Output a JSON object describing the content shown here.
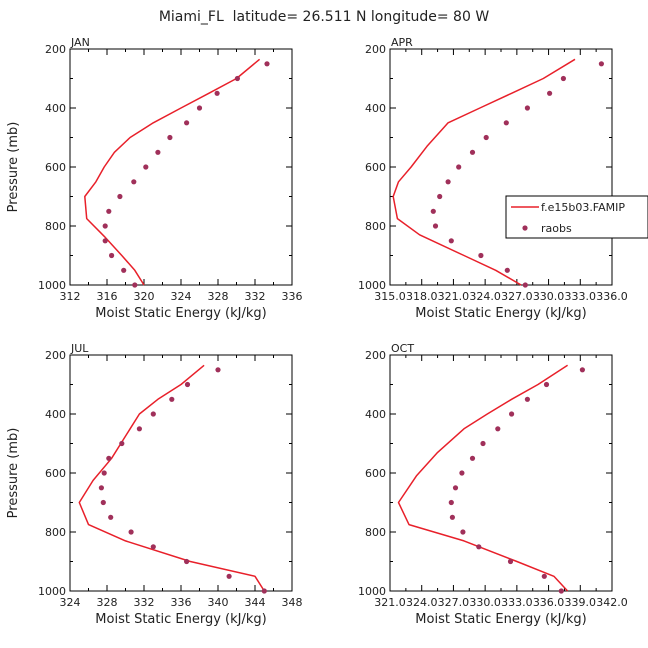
{
  "figure": {
    "title": "Miami_FL  latitude= 26.511 N longitude= 80 W",
    "colors": {
      "model": "#e8202a",
      "obs": "#a0305a"
    }
  },
  "chart_data": [
    {
      "type": "line",
      "panel": "JAN",
      "xlabel": "Moist Static Energy (kJ/kg)",
      "ylabel": "Pressure (mb)",
      "xlim": [
        312,
        336
      ],
      "ylim": [
        1000,
        200
      ],
      "x_ticks": [
        312,
        316,
        320,
        324,
        328,
        332,
        336
      ],
      "x_tick_labels": [
        "312",
        "316",
        "320",
        "324",
        "328",
        "332",
        "336"
      ],
      "y_ticks": [
        200,
        400,
        600,
        800,
        1000
      ],
      "y_tick_labels": [
        "200",
        "400",
        "600",
        "800",
        "1000"
      ],
      "series": [
        {
          "style": "line",
          "x": [
            332.5,
            330,
            327,
            324,
            321,
            318.5,
            316.8,
            315.7,
            314.8,
            313.6,
            313.8,
            315.7,
            317.6,
            319,
            320
          ],
          "y": [
            235,
            300,
            350,
            400,
            450,
            500,
            550,
            600,
            650,
            700,
            775,
            835,
            900,
            950,
            1000
          ]
        },
        {
          "style": "points",
          "x": [
            333.3,
            330.1,
            327.9,
            326,
            324.6,
            322.8,
            321.5,
            320.2,
            318.9,
            317.4,
            316.2,
            315.8,
            315.8,
            316.5,
            317.8,
            319
          ],
          "y": [
            250,
            300,
            350,
            400,
            450,
            500,
            550,
            600,
            650,
            700,
            750,
            800,
            850,
            900,
            950,
            1000
          ]
        }
      ]
    },
    {
      "type": "line",
      "panel": "APR",
      "xlabel": "Moist Static Energy (kJ/kg)",
      "ylabel": "",
      "xlim": [
        315.0,
        336.0
      ],
      "ylim": [
        1000,
        200
      ],
      "x_ticks": [
        315.0,
        318.0,
        321.0,
        324.0,
        327.0,
        330.0,
        333.0,
        336.0
      ],
      "x_tick_labels": [
        "315.0",
        "318.0",
        "321.0",
        "324.0",
        "327.0",
        "330.0",
        "333.0",
        "336.0"
      ],
      "y_ticks": [
        200,
        400,
        600,
        800,
        1000
      ],
      "y_tick_labels": [
        "200",
        "400",
        "600",
        "800",
        "1000"
      ],
      "series": [
        {
          "name": "f.e15b03.FAMIP",
          "style": "line",
          "x": [
            332.5,
            329.5,
            326.5,
            323.5,
            320.5,
            318.5,
            317,
            315.8,
            315.3,
            315.7,
            317.8,
            322,
            325,
            327.4
          ],
          "y": [
            235,
            300,
            350,
            400,
            450,
            530,
            600,
            650,
            700,
            775,
            830,
            900,
            950,
            1000
          ]
        },
        {
          "name": "raobs",
          "style": "points",
          "x": [
            335,
            331.4,
            330.1,
            328,
            326,
            324.1,
            322.8,
            321.5,
            320.5,
            319.7,
            319.1,
            319.3,
            320.8,
            323.6,
            326.1,
            327.8
          ],
          "y": [
            250,
            300,
            350,
            400,
            450,
            500,
            550,
            600,
            650,
            700,
            750,
            800,
            850,
            900,
            950,
            1000
          ]
        }
      ]
    },
    {
      "type": "line",
      "panel": "JUL",
      "xlabel": "Moist Static Energy (kJ/kg)",
      "ylabel": "Pressure (mb)",
      "xlim": [
        324,
        348
      ],
      "ylim": [
        1000,
        200
      ],
      "x_ticks": [
        324,
        328,
        332,
        336,
        340,
        344,
        348
      ],
      "x_tick_labels": [
        "324",
        "328",
        "332",
        "336",
        "340",
        "344",
        "348"
      ],
      "y_ticks": [
        200,
        400,
        600,
        800,
        1000
      ],
      "y_tick_labels": [
        "200",
        "400",
        "600",
        "800",
        "1000"
      ],
      "series": [
        {
          "style": "line",
          "x": [
            338.5,
            336,
            333.5,
            331.5,
            330.5,
            328.5,
            326.5,
            325,
            326,
            330,
            337,
            344,
            345
          ],
          "y": [
            235,
            300,
            350,
            400,
            450,
            550,
            625,
            700,
            775,
            830,
            900,
            950,
            1000
          ]
        },
        {
          "style": "points",
          "x": [
            340,
            336.7,
            335,
            333,
            331.5,
            329.6,
            328.2,
            327.7,
            327.4,
            327.6,
            328.4,
            330.6,
            333,
            336.6,
            341.2,
            345
          ],
          "y": [
            250,
            300,
            350,
            400,
            450,
            500,
            550,
            600,
            650,
            700,
            750,
            800,
            850,
            900,
            950,
            1000
          ]
        }
      ]
    },
    {
      "type": "line",
      "panel": "OCT",
      "xlabel": "Moist Static Energy (kJ/kg)",
      "ylabel": "",
      "xlim": [
        321.0,
        342.0
      ],
      "ylim": [
        1000,
        200
      ],
      "x_ticks": [
        321.0,
        324.0,
        327.0,
        330.0,
        333.0,
        336.0,
        339.0,
        342.0
      ],
      "x_tick_labels": [
        "321.0",
        "324.0",
        "327.0",
        "330.0",
        "333.0",
        "336.0",
        "339.0",
        "342.0"
      ],
      "y_ticks": [
        200,
        400,
        600,
        800,
        1000
      ],
      "y_tick_labels": [
        "200",
        "400",
        "600",
        "800",
        "1000"
      ],
      "series": [
        {
          "style": "line",
          "x": [
            337.8,
            335,
            332.5,
            330.2,
            328,
            325.5,
            323.5,
            321.8,
            322.8,
            328,
            333,
            336.5,
            337.8
          ],
          "y": [
            235,
            300,
            350,
            400,
            450,
            530,
            610,
            700,
            775,
            830,
            900,
            950,
            1000
          ]
        },
        {
          "style": "points",
          "x": [
            339.2,
            335.8,
            334,
            332.5,
            331.2,
            329.8,
            328.8,
            327.8,
            327.2,
            326.8,
            326.9,
            327.9,
            329.4,
            332.4,
            335.6,
            337.2
          ],
          "y": [
            250,
            300,
            350,
            400,
            450,
            500,
            550,
            600,
            650,
            700,
            750,
            800,
            850,
            900,
            950,
            1000
          ]
        }
      ]
    }
  ]
}
